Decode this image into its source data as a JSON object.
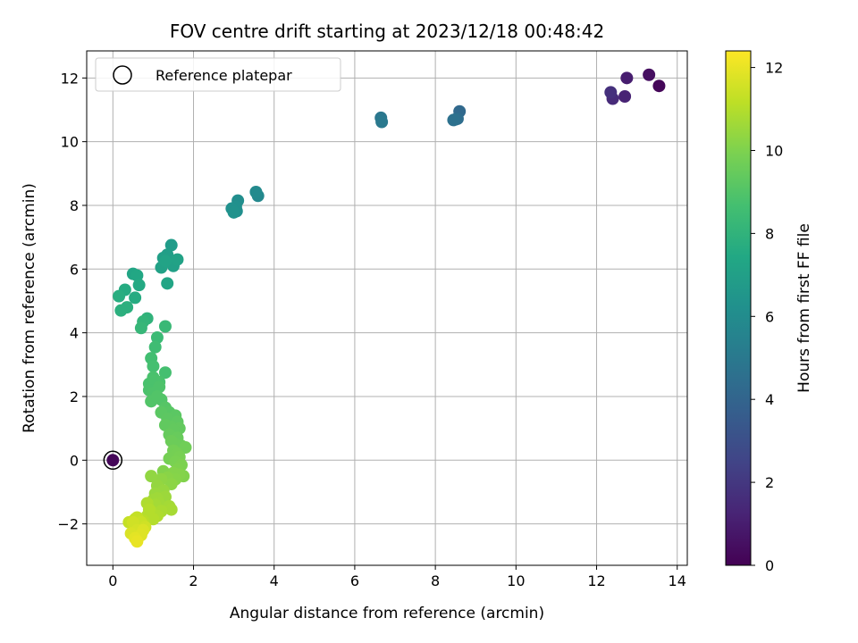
{
  "chart_data": {
    "type": "scatter",
    "title": "FOV centre drift starting at 2023/12/18 00:48:42",
    "xlabel": "Angular distance from reference (arcmin)",
    "ylabel": "Rotation from reference (arcmin)",
    "xlim": [
      -0.65,
      14.25
    ],
    "ylim": [
      -3.3,
      12.85
    ],
    "xticks": [
      0,
      2,
      4,
      6,
      8,
      10,
      12,
      14
    ],
    "xtick_labels": [
      "0",
      "2",
      "4",
      "6",
      "8",
      "10",
      "12",
      "14"
    ],
    "yticks": [
      -2,
      0,
      2,
      4,
      6,
      8,
      10,
      12
    ],
    "ytick_labels": [
      "−2",
      "0",
      "2",
      "4",
      "6",
      "8",
      "10",
      "12"
    ],
    "grid": true,
    "legend": {
      "position": "upper left",
      "entries": [
        "Reference platepar"
      ]
    },
    "colorbar": {
      "label": "Hours from first FF file",
      "range": [
        0,
        12.4
      ],
      "ticks": [
        0,
        2,
        4,
        6,
        8,
        10,
        12
      ],
      "tick_labels": [
        "0",
        "2",
        "4",
        "6",
        "8",
        "10",
        "12"
      ],
      "colormap": "viridis"
    },
    "reference_point": {
      "x": 0,
      "y": 0,
      "hours": 0.2
    },
    "points": [
      [
        13.55,
        11.75,
        0.2
      ],
      [
        13.3,
        12.1,
        0.5
      ],
      [
        12.75,
        12.0,
        1.0
      ],
      [
        12.7,
        11.42,
        1.2
      ],
      [
        12.4,
        11.35,
        1.5
      ],
      [
        12.35,
        11.55,
        1.7
      ],
      [
        8.6,
        10.95,
        4.2
      ],
      [
        8.55,
        10.72,
        4.4
      ],
      [
        8.5,
        10.7,
        4.5
      ],
      [
        8.45,
        10.68,
        4.6
      ],
      [
        6.65,
        10.75,
        4.9
      ],
      [
        6.67,
        10.62,
        5.0
      ],
      [
        3.6,
        8.3,
        5.8
      ],
      [
        3.55,
        8.42,
        5.9
      ],
      [
        3.1,
        8.15,
        6.1
      ],
      [
        3.05,
        7.95,
        6.2
      ],
      [
        3.0,
        7.78,
        6.3
      ],
      [
        2.95,
        7.9,
        6.25
      ],
      [
        3.07,
        7.82,
        6.15
      ],
      [
        1.45,
        6.75,
        6.8
      ],
      [
        1.35,
        6.45,
        6.9
      ],
      [
        1.25,
        6.35,
        7.0
      ],
      [
        1.2,
        6.05,
        7.1
      ],
      [
        1.5,
        6.1,
        7.05
      ],
      [
        1.6,
        6.3,
        7.15
      ],
      [
        1.35,
        5.55,
        7.3
      ],
      [
        1.3,
        6.25,
        7.2
      ],
      [
        0.5,
        5.85,
        7.3
      ],
      [
        0.6,
        5.8,
        7.4
      ],
      [
        0.65,
        5.5,
        7.5
      ],
      [
        0.55,
        5.1,
        7.6
      ],
      [
        0.3,
        5.35,
        7.6
      ],
      [
        0.15,
        5.15,
        7.7
      ],
      [
        0.35,
        4.8,
        7.8
      ],
      [
        0.2,
        4.7,
        7.8
      ],
      [
        0.85,
        4.45,
        8.0
      ],
      [
        0.75,
        4.35,
        8.1
      ],
      [
        0.7,
        4.15,
        8.2
      ],
      [
        1.3,
        4.2,
        8.3
      ],
      [
        1.1,
        3.85,
        8.4
      ],
      [
        1.05,
        3.55,
        8.5
      ],
      [
        0.95,
        3.2,
        8.6
      ],
      [
        1.3,
        2.75,
        8.7
      ],
      [
        1.0,
        2.95,
        8.7
      ],
      [
        0.9,
        2.4,
        8.8
      ],
      [
        1.05,
        2.5,
        8.85
      ],
      [
        1.15,
        2.3,
        8.9
      ],
      [
        1.0,
        2.1,
        8.9
      ],
      [
        1.2,
        1.9,
        9.0
      ],
      [
        0.95,
        1.85,
        9.0
      ],
      [
        1.3,
        1.65,
        9.1
      ],
      [
        1.4,
        1.5,
        9.15
      ],
      [
        1.55,
        1.4,
        9.2
      ],
      [
        1.35,
        1.3,
        9.25
      ],
      [
        1.6,
        1.2,
        9.3
      ],
      [
        1.45,
        1.05,
        9.35
      ],
      [
        1.65,
        1.0,
        9.4
      ],
      [
        1.4,
        0.8,
        9.45
      ],
      [
        1.6,
        0.7,
        9.5
      ],
      [
        1.55,
        0.5,
        9.55
      ],
      [
        1.7,
        0.45,
        9.6
      ],
      [
        1.8,
        0.4,
        9.7
      ],
      [
        1.5,
        0.3,
        9.75
      ],
      [
        1.6,
        0.2,
        9.8
      ],
      [
        1.65,
        0.1,
        9.85
      ],
      [
        1.55,
        -0.05,
        9.9
      ],
      [
        1.7,
        -0.15,
        9.95
      ],
      [
        1.6,
        -0.3,
        10.0
      ],
      [
        1.75,
        -0.5,
        10.05
      ],
      [
        1.5,
        -0.4,
        10.1
      ],
      [
        1.55,
        -0.6,
        10.15
      ],
      [
        1.35,
        -0.55,
        10.2
      ],
      [
        1.45,
        -0.75,
        10.25
      ],
      [
        1.2,
        -0.6,
        10.3
      ],
      [
        0.95,
        -0.5,
        10.35
      ],
      [
        1.1,
        -0.8,
        10.4
      ],
      [
        1.25,
        -0.95,
        10.45
      ],
      [
        1.05,
        -1.05,
        10.5
      ],
      [
        1.3,
        -1.15,
        10.55
      ],
      [
        1.0,
        -1.25,
        10.6
      ],
      [
        1.15,
        -1.35,
        10.65
      ],
      [
        1.4,
        -1.45,
        10.7
      ],
      [
        1.45,
        -1.55,
        10.75
      ],
      [
        1.2,
        -1.6,
        10.8
      ],
      [
        0.95,
        -1.6,
        10.85
      ],
      [
        1.1,
        -1.75,
        10.9
      ],
      [
        0.85,
        -1.75,
        10.95
      ],
      [
        1.0,
        -1.85,
        11.0
      ],
      [
        0.75,
        -1.9,
        11.1
      ],
      [
        0.55,
        -1.85,
        11.2
      ],
      [
        0.4,
        -1.95,
        11.3
      ],
      [
        0.65,
        -2.0,
        11.4
      ],
      [
        0.8,
        -2.1,
        11.5
      ],
      [
        0.6,
        -2.2,
        11.6
      ],
      [
        0.45,
        -2.3,
        11.7
      ],
      [
        0.7,
        -2.35,
        11.8
      ],
      [
        0.55,
        -2.45,
        11.9
      ],
      [
        0.6,
        -2.55,
        12.0
      ],
      [
        0.75,
        -2.2,
        11.75
      ],
      [
        0.9,
        -1.55,
        11.0
      ],
      [
        1.05,
        -1.4,
        10.7
      ],
      [
        0.5,
        -1.95,
        11.5
      ],
      [
        0.6,
        -1.8,
        11.3
      ],
      [
        0.85,
        -1.35,
        10.9
      ],
      [
        1.25,
        -0.35,
        10.05
      ],
      [
        1.4,
        0.05,
        9.8
      ],
      [
        1.5,
        0.95,
        9.4
      ],
      [
        1.3,
        1.1,
        9.35
      ],
      [
        1.2,
        1.5,
        9.2
      ],
      [
        1.1,
        2.0,
        9.0
      ],
      [
        0.9,
        2.2,
        8.85
      ],
      [
        1.0,
        2.6,
        8.8
      ],
      [
        1.15,
        2.45,
        8.8
      ],
      [
        1.45,
        0.6,
        9.6
      ],
      [
        1.65,
        -0.45,
        10.1
      ],
      [
        1.1,
        -1.2,
        10.6
      ],
      [
        0.7,
        -1.95,
        11.4
      ]
    ]
  }
}
